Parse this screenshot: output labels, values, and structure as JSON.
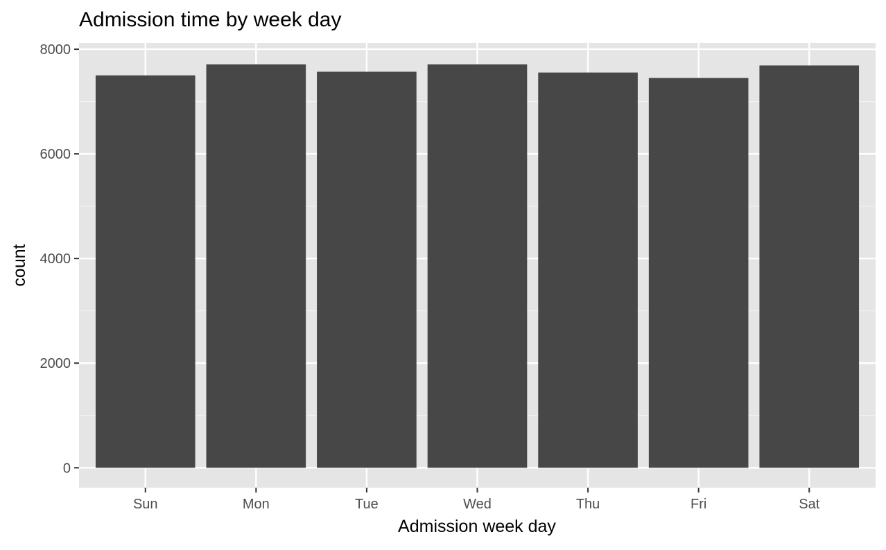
{
  "chart_data": {
    "type": "bar",
    "title": "Admission time by week day",
    "xlabel": "Admission week day",
    "ylabel": "count",
    "categories": [
      "Sun",
      "Mon",
      "Tue",
      "Wed",
      "Thu",
      "Fri",
      "Sat"
    ],
    "values": [
      7500,
      7710,
      7570,
      7710,
      7555,
      7450,
      7690
    ],
    "ylim": [
      -380,
      8120
    ],
    "yticks": [
      0,
      2000,
      4000,
      6000,
      8000
    ],
    "ytick_labels": [
      "0",
      "2000",
      "4000",
      "6000",
      "8000"
    ],
    "grid": true,
    "legend": "none",
    "colors": {
      "bar": "#474747",
      "panel": "#e5e5e5",
      "grid_major": "#ffffff",
      "grid_minor": "#f2f2f2",
      "tick": "#333333",
      "tick_label": "#4d4d4d"
    }
  }
}
